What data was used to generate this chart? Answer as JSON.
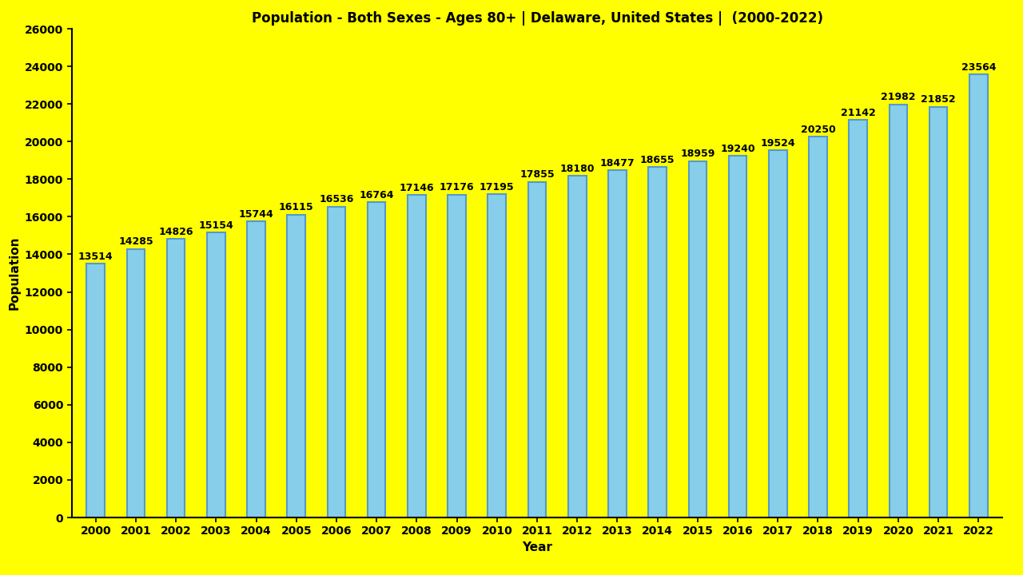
{
  "title": "Population - Both Sexes - Ages 80+ | Delaware, United States |  (2000-2022)",
  "xlabel": "Year",
  "ylabel": "Population",
  "years": [
    2000,
    2001,
    2002,
    2003,
    2004,
    2005,
    2006,
    2007,
    2008,
    2009,
    2010,
    2011,
    2012,
    2013,
    2014,
    2015,
    2016,
    2017,
    2018,
    2019,
    2020,
    2021,
    2022
  ],
  "values": [
    13514,
    14285,
    14826,
    15154,
    15744,
    16115,
    16536,
    16764,
    17146,
    17176,
    17195,
    17855,
    18180,
    18477,
    18655,
    18959,
    19240,
    19524,
    20250,
    21142,
    21982,
    21852,
    23564
  ],
  "bar_color": "#87CEEB",
  "bar_edgecolor": "#5599CC",
  "background_color": "#FFFF00",
  "text_color": "#000000",
  "ylim": [
    0,
    26000
  ],
  "yticks": [
    0,
    2000,
    4000,
    6000,
    8000,
    10000,
    12000,
    14000,
    16000,
    18000,
    20000,
    22000,
    24000,
    26000
  ],
  "title_fontsize": 12,
  "label_fontsize": 11,
  "tick_fontsize": 10,
  "value_fontsize": 9
}
